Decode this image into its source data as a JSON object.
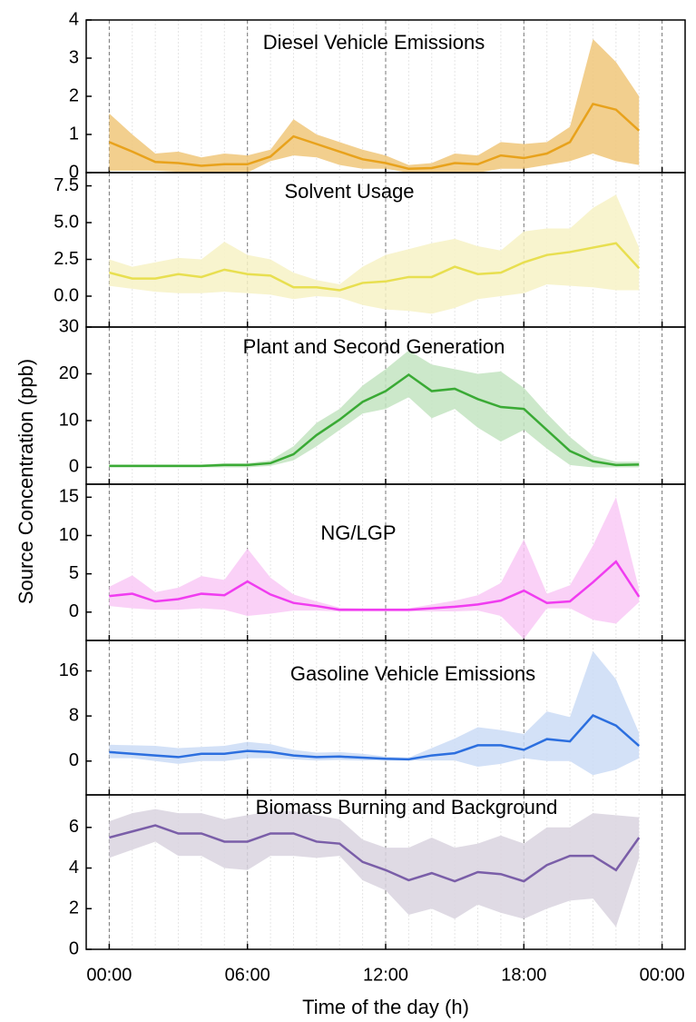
{
  "ylabel": "Source Concentration (ppb)",
  "x_axis": {
    "label": "Time of the day (h)",
    "xlim": [
      -1,
      25
    ],
    "xticks": [
      {
        "value": 0,
        "label": "00:00"
      },
      {
        "value": 6,
        "label": "06:00"
      },
      {
        "value": 12,
        "label": "12:00"
      },
      {
        "value": 18,
        "label": "18:00"
      },
      {
        "value": 24,
        "label": "00:00"
      }
    ]
  },
  "chart_data": [
    {
      "type": "line",
      "title": "Diesel Vehicle Emissions",
      "color": "#e8a21c",
      "band_color": "#f0c77a",
      "ylim": [
        0,
        4
      ],
      "yticks": [
        0,
        1,
        2,
        3,
        4
      ],
      "x": [
        0,
        1,
        2,
        3,
        4,
        5,
        6,
        7,
        8,
        9,
        10,
        11,
        12,
        13,
        14,
        15,
        16,
        17,
        18,
        19,
        20,
        21,
        22,
        23
      ],
      "values": [
        0.8,
        0.55,
        0.28,
        0.25,
        0.18,
        0.22,
        0.22,
        0.42,
        0.95,
        0.75,
        0.55,
        0.35,
        0.25,
        0.1,
        0.12,
        0.25,
        0.22,
        0.45,
        0.38,
        0.5,
        0.8,
        1.8,
        1.65,
        1.1
      ],
      "lower": [
        0.05,
        0.05,
        0.05,
        0.02,
        0,
        0,
        0,
        0.3,
        0.45,
        0.4,
        0.2,
        0.1,
        0.1,
        0,
        0,
        0,
        0,
        0.1,
        0.1,
        0.2,
        0.3,
        0.5,
        0.3,
        0.2
      ],
      "upper": [
        1.55,
        1.0,
        0.5,
        0.55,
        0.4,
        0.5,
        0.45,
        0.6,
        1.4,
        1.0,
        0.8,
        0.6,
        0.45,
        0.2,
        0.25,
        0.5,
        0.45,
        0.8,
        0.75,
        0.8,
        1.2,
        3.5,
        2.9,
        2.0
      ]
    },
    {
      "type": "line",
      "title": "Solvent Usage",
      "color": "#e8df50",
      "band_color": "#f7f2c6",
      "ylim": [
        -2.1,
        8.4
      ],
      "yticks": [
        {
          "value": 0,
          "label": "0.0"
        },
        2.5,
        {
          "value": 5,
          "label": "5.0"
        },
        7.5
      ],
      "x": [
        0,
        1,
        2,
        3,
        4,
        5,
        6,
        7,
        8,
        9,
        10,
        11,
        12,
        13,
        14,
        15,
        16,
        17,
        18,
        19,
        20,
        21,
        22,
        23
      ],
      "values": [
        1.6,
        1.2,
        1.2,
        1.5,
        1.3,
        1.8,
        1.5,
        1.4,
        0.6,
        0.6,
        0.4,
        0.9,
        1.0,
        1.3,
        1.3,
        2.0,
        1.5,
        1.6,
        2.3,
        2.8,
        3.0,
        3.3,
        3.6,
        1.9
      ],
      "lower": [
        0.7,
        0.5,
        0.3,
        0.2,
        0.2,
        0.3,
        0.2,
        0.1,
        -0.2,
        0,
        -0.1,
        -0.6,
        -0.9,
        -1.0,
        -1.2,
        -0.8,
        -0.2,
        0,
        0.2,
        0.8,
        0.7,
        0.6,
        0.4,
        0.4
      ],
      "upper": [
        2.5,
        2.0,
        2.3,
        2.6,
        2.5,
        3.7,
        2.8,
        2.5,
        1.6,
        1.1,
        0.8,
        2.0,
        2.8,
        3.2,
        3.6,
        3.9,
        3.4,
        3.1,
        4.4,
        4.6,
        4.6,
        6.0,
        6.9,
        3.3
      ]
    },
    {
      "type": "line",
      "title": "Plant and Second Generation",
      "color": "#3aaa35",
      "band_color": "#c3e4c1",
      "ylim": [
        -3.6,
        30
      ],
      "yticks": [
        0,
        10,
        20,
        30
      ],
      "x": [
        0,
        1,
        2,
        3,
        4,
        5,
        6,
        7,
        8,
        9,
        10,
        11,
        12,
        13,
        14,
        15,
        16,
        17,
        18,
        19,
        20,
        21,
        22,
        23
      ],
      "values": [
        0.3,
        0.3,
        0.3,
        0.3,
        0.3,
        0.5,
        0.5,
        0.9,
        2.8,
        6.9,
        10.2,
        14,
        16.3,
        19.8,
        16.3,
        16.8,
        14.6,
        12.9,
        12.5,
        8,
        3.5,
        1.3,
        0.5,
        0.6
      ],
      "lower": [
        0,
        0,
        0,
        0,
        0,
        0,
        0,
        0.3,
        1.5,
        4.5,
        8,
        11.5,
        12.5,
        15,
        10.5,
        12.5,
        8.5,
        5.5,
        8,
        4,
        0.5,
        0,
        0,
        0
      ],
      "upper": [
        0.6,
        0.6,
        0.6,
        0.6,
        0.6,
        0.9,
        0.9,
        1.5,
        4.5,
        9.5,
        12.5,
        17.5,
        21,
        25,
        22,
        21,
        20,
        20.5,
        17,
        11.5,
        6.5,
        2.5,
        1.2,
        1.2
      ]
    },
    {
      "type": "line",
      "title": "NG/LGP",
      "color": "#f03cf0",
      "band_color": "#f9c9f6",
      "ylim": [
        -3.7,
        16.7
      ],
      "yticks": [
        0,
        5,
        10,
        15
      ],
      "x": [
        0,
        1,
        2,
        3,
        4,
        5,
        6,
        7,
        8,
        9,
        10,
        11,
        12,
        13,
        14,
        15,
        16,
        17,
        18,
        19,
        20,
        21,
        22,
        23
      ],
      "values": [
        2.1,
        2.4,
        1.4,
        1.7,
        2.4,
        2.2,
        4,
        2.3,
        1.2,
        0.8,
        0.3,
        0.3,
        0.3,
        0.3,
        0.5,
        0.7,
        1,
        1.5,
        2.8,
        1.2,
        1.4,
        3.9,
        6.6,
        2
      ],
      "lower": [
        0.8,
        0.5,
        0.3,
        0.3,
        0.5,
        0.3,
        -0.5,
        -0.2,
        0.2,
        0.2,
        0.1,
        0.1,
        0.1,
        0.1,
        0.1,
        0.1,
        0.2,
        -0.5,
        -3.5,
        0.5,
        0.5,
        -1,
        -1.5,
        1.3
      ],
      "upper": [
        3.3,
        4.8,
        2.6,
        3.2,
        4.7,
        4.2,
        8.3,
        4.5,
        2.3,
        1.4,
        0.6,
        0.5,
        0.5,
        0.5,
        1,
        1.5,
        2.2,
        3.8,
        9.5,
        2.4,
        3.5,
        8.7,
        15,
        3
      ]
    },
    {
      "type": "line",
      "title": "Gasoline Vehicle Emissions",
      "color": "#2c6fdf",
      "band_color": "#cbdcf6",
      "ylim": [
        -6,
        21.4
      ],
      "yticks": [
        0,
        8,
        16
      ],
      "x": [
        0,
        1,
        2,
        3,
        4,
        5,
        6,
        7,
        8,
        9,
        10,
        11,
        12,
        13,
        14,
        15,
        16,
        17,
        18,
        19,
        20,
        21,
        22,
        23
      ],
      "values": [
        1.6,
        1.3,
        1,
        0.7,
        1.3,
        1.3,
        1.8,
        1.6,
        1,
        0.7,
        0.8,
        0.6,
        0.4,
        0.3,
        1,
        1.4,
        2.8,
        2.8,
        2,
        3.9,
        3.5,
        8.1,
        6.3,
        2.7
      ],
      "lower": [
        0.5,
        0.5,
        0,
        -0.5,
        0,
        0,
        0.5,
        0.5,
        0.3,
        0.1,
        0.2,
        0.1,
        0.1,
        0.1,
        0.1,
        0.1,
        -1,
        -0.5,
        0.5,
        0,
        0,
        -2.5,
        -1.5,
        0.5
      ],
      "upper": [
        2.9,
        2.8,
        2.7,
        2.3,
        2.5,
        2.7,
        3.4,
        3,
        2,
        1.5,
        1.6,
        1.3,
        0.8,
        0.6,
        2.3,
        4,
        6,
        5.5,
        4.8,
        8.8,
        7.8,
        19.5,
        14.5,
        5
      ]
    },
    {
      "type": "line",
      "title": "Biomass Burning and Background",
      "color": "#7a5ea8",
      "band_color": "#d9d4df",
      "ylim": [
        0,
        7.6
      ],
      "yticks": [
        0,
        2,
        4,
        6
      ],
      "x": [
        0,
        1,
        2,
        3,
        4,
        5,
        6,
        7,
        8,
        9,
        10,
        11,
        12,
        13,
        14,
        15,
        16,
        17,
        18,
        19,
        20,
        21,
        22,
        23
      ],
      "values": [
        5.5,
        5.8,
        6.1,
        5.7,
        5.7,
        5.3,
        5.3,
        5.7,
        5.7,
        5.3,
        5.2,
        4.3,
        3.9,
        3.4,
        3.75,
        3.35,
        3.8,
        3.7,
        3.35,
        4.15,
        4.6,
        4.6,
        3.9,
        5.5
      ],
      "lower": [
        4.5,
        4.9,
        5.3,
        4.6,
        4.6,
        4.0,
        3.9,
        4.6,
        4.6,
        4.5,
        4.6,
        3.4,
        2.9,
        1.7,
        2.0,
        1.5,
        2.2,
        1.8,
        1.5,
        2.0,
        2.4,
        2.5,
        1.1,
        4.5
      ],
      "upper": [
        6.3,
        6.7,
        6.9,
        6.7,
        6.7,
        6.4,
        6.6,
        6.8,
        6.8,
        6.6,
        6.4,
        5.4,
        5,
        5,
        5.5,
        5,
        5.2,
        5.6,
        5.2,
        6,
        6,
        6.7,
        6.6,
        6.5
      ]
    }
  ]
}
